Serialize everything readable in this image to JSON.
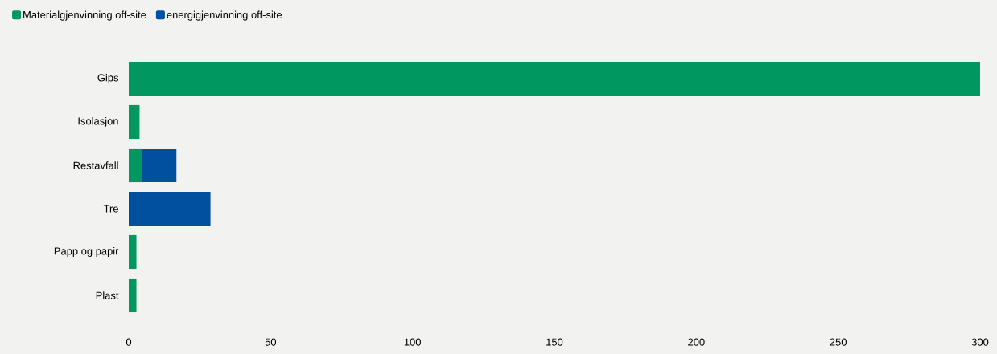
{
  "chart_data": {
    "type": "bar",
    "orientation": "horizontal",
    "stacked": true,
    "legend": "top left",
    "categories": [
      "Gips",
      "Isolasjon",
      "Restavfall",
      "Tre",
      "Papp og papir",
      "Plast"
    ],
    "series": [
      {
        "name": "Materialgjenvinning off-site",
        "color": "#009760",
        "values": [
          300,
          3.8,
          4.7,
          null,
          2.7,
          2.7
        ]
      },
      {
        "name": "energigjenvinning off-site",
        "color": "#0050a0",
        "values": [
          null,
          null,
          12.1,
          28.8,
          null,
          null
        ]
      }
    ],
    "xlim": [
      0,
      300
    ],
    "xticks": [
      0,
      50,
      100,
      150,
      200,
      250,
      300
    ]
  }
}
